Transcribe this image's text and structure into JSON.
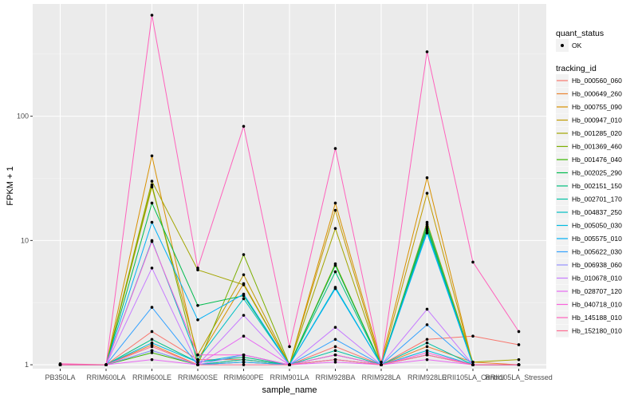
{
  "chart_data": {
    "type": "line",
    "xlabel": "sample_name",
    "ylabel": "FPKM + 1",
    "y_scale": "log10",
    "ylim": [
      0.93,
      800
    ],
    "y_ticks": [
      1,
      10,
      100
    ],
    "y_tick_labels": [
      "1",
      "10",
      "100"
    ],
    "grid": true,
    "legend_position": "right",
    "categories": [
      "PB350LA",
      "RRIM600LA",
      "RRIM600LE",
      "RRIM600SE",
      "RRIM600PE",
      "RRIM901LA",
      "RRIM928BA",
      "RRIM928LA",
      "RRIM928LE",
      "RRII105LA_Control",
      "RRII105LA_Stressed"
    ],
    "series": [
      {
        "name": "Hb_000560_060",
        "color": "#F8766D",
        "values": [
          1.0,
          1.0,
          1.85,
          1.1,
          1.1,
          1.0,
          1.4,
          1.0,
          1.6,
          1.7,
          1.45
        ]
      },
      {
        "name": "Hb_000649_260",
        "color": "#EA8331",
        "values": [
          1.0,
          1.0,
          1.45,
          1.0,
          1.1,
          1.0,
          1.2,
          1.0,
          1.4,
          1.05,
          1.0
        ]
      },
      {
        "name": "Hb_000755_090",
        "color": "#D89000",
        "values": [
          1.0,
          1.0,
          48.0,
          1.1,
          4.5,
          1.0,
          20.0,
          1.05,
          32.0,
          1.0,
          1.0
        ]
      },
      {
        "name": "Hb_000947_010",
        "color": "#C09B00",
        "values": [
          1.0,
          1.0,
          27.0,
          1.2,
          5.3,
          1.0,
          17.5,
          1.0,
          24.0,
          1.0,
          1.0
        ]
      },
      {
        "name": "Hb_001285_020",
        "color": "#A3A500",
        "values": [
          1.0,
          1.0,
          30.0,
          5.8,
          4.4,
          1.0,
          12.5,
          1.0,
          14.0,
          1.05,
          1.1
        ]
      },
      {
        "name": "Hb_001369_460",
        "color": "#7CAE00",
        "values": [
          1.0,
          1.0,
          28.0,
          1.0,
          7.7,
          1.0,
          6.5,
          1.0,
          13.0,
          1.0,
          1.0
        ]
      },
      {
        "name": "Hb_001476_040",
        "color": "#39B600",
        "values": [
          1.0,
          1.0,
          1.25,
          1.0,
          1.05,
          1.0,
          1.1,
          1.0,
          1.2,
          1.0,
          1.0
        ]
      },
      {
        "name": "Hb_002025_290",
        "color": "#00BB4E",
        "values": [
          1.0,
          1.0,
          20.0,
          3.0,
          3.6,
          1.0,
          6.3,
          1.0,
          12.5,
          1.0,
          1.0
        ]
      },
      {
        "name": "Hb_002151_150",
        "color": "#00BF7D",
        "values": [
          1.0,
          1.0,
          1.6,
          1.05,
          1.15,
          1.0,
          5.6,
          1.0,
          13.5,
          1.0,
          1.0
        ]
      },
      {
        "name": "Hb_002701_170",
        "color": "#00C1A3",
        "values": [
          1.0,
          1.0,
          1.3,
          1.0,
          1.1,
          1.0,
          1.3,
          1.0,
          1.5,
          1.0,
          1.0
        ]
      },
      {
        "name": "Hb_004837_250",
        "color": "#00BFC4",
        "values": [
          1.0,
          1.0,
          10.0,
          1.1,
          3.4,
          1.0,
          4.2,
          1.0,
          12.0,
          1.0,
          1.0
        ]
      },
      {
        "name": "Hb_005050_030",
        "color": "#00BAE0",
        "values": [
          1.0,
          1.0,
          1.5,
          1.05,
          1.2,
          1.0,
          1.2,
          1.0,
          1.3,
          1.0,
          1.0
        ]
      },
      {
        "name": "Hb_005575_010",
        "color": "#00B0F6",
        "values": [
          1.0,
          1.0,
          14.0,
          2.3,
          3.7,
          1.0,
          4.1,
          1.0,
          11.5,
          1.0,
          1.0
        ]
      },
      {
        "name": "Hb_005622_030",
        "color": "#35A2FF",
        "values": [
          1.0,
          1.0,
          2.9,
          1.0,
          1.05,
          1.0,
          1.6,
          1.0,
          2.1,
          1.0,
          1.0
        ]
      },
      {
        "name": "Hb_006938_060",
        "color": "#9590FF",
        "values": [
          1.0,
          1.0,
          1.3,
          1.0,
          1.2,
          1.0,
          1.1,
          1.0,
          1.2,
          1.0,
          1.0
        ]
      },
      {
        "name": "Hb_010678_010",
        "color": "#C77CFF",
        "values": [
          1.0,
          1.0,
          6.0,
          1.0,
          2.5,
          1.0,
          2.0,
          1.0,
          2.8,
          1.0,
          1.0
        ]
      },
      {
        "name": "Hb_028707_120",
        "color": "#E76BF3",
        "values": [
          1.0,
          1.0,
          1.1,
          1.0,
          1.7,
          1.0,
          1.05,
          1.0,
          1.1,
          1.0,
          1.0
        ]
      },
      {
        "name": "Hb_040718_010",
        "color": "#FA62DB",
        "values": [
          1.0,
          1.0,
          9.8,
          1.2,
          1.2,
          1.0,
          1.2,
          1.0,
          1.25,
          1.0,
          1.0
        ]
      },
      {
        "name": "Hb_145188_010",
        "color": "#FF62BC",
        "values": [
          1.02,
          1.0,
          650.0,
          6.0,
          83.0,
          1.4,
          55.0,
          1.0,
          330.0,
          6.7,
          1.85
        ]
      },
      {
        "name": "Hb_152180_010",
        "color": "#FF6C91",
        "values": [
          1.0,
          1.0,
          1.4,
          1.0,
          1.0,
          1.0,
          1.1,
          1.0,
          1.2,
          1.0,
          1.0
        ]
      }
    ]
  },
  "legend": {
    "shape_title": "quant_status",
    "shape_items": [
      "OK"
    ],
    "color_title": "tracking_id"
  }
}
